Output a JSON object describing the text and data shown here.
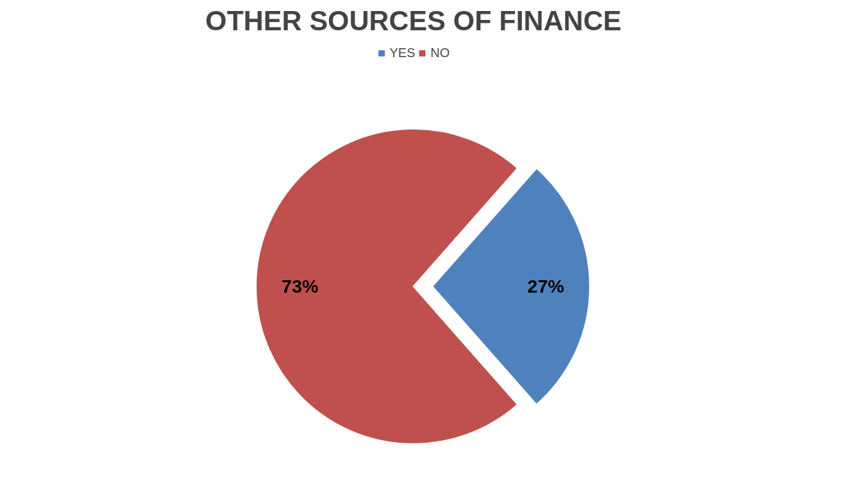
{
  "chart_data": {
    "type": "pie",
    "title": "OTHER SOURCES OF FINANCE",
    "categories": [
      "YES",
      "NO"
    ],
    "values": [
      27,
      73
    ],
    "colors": [
      "#4f81bd",
      "#c0504d"
    ],
    "value_labels": [
      "27%",
      "73%"
    ],
    "legend": "top"
  }
}
